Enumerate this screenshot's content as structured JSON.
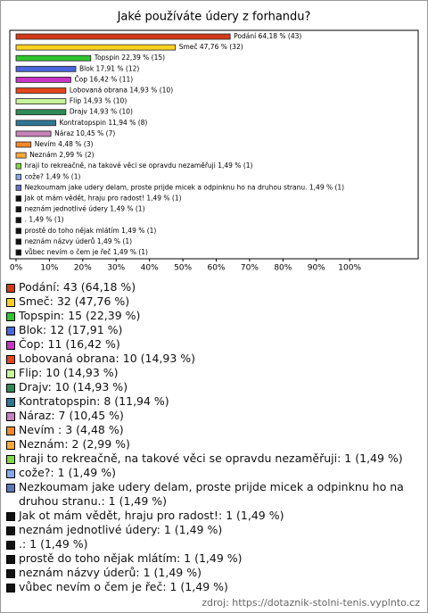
{
  "chart_data": {
    "type": "bar",
    "orientation": "horizontal",
    "title": "Jaké používáte údery z forhandu?",
    "categories": [
      "Podání",
      "Smeč",
      "Topspin",
      "Blok",
      "Čop",
      "Lobovaná obrana",
      "Flip",
      "Drajv",
      "Kontratopspin",
      "Náraz",
      "Nevím",
      "Neznám",
      "hraji to rekreačně, na takové věci se opravdu nezaměřuji",
      "cože?",
      "Nezkoumam jake udery delam, proste prijde micek a odpinknu ho na druhou stranu.",
      "Jak ot mám vědět, hraju pro radost!",
      "neznám jednotlivé údery",
      ".",
      "prostě do toho nějak mlátím",
      "neznám názvy úderů",
      "vůbec nevím o čem je řeč"
    ],
    "values": [
      64.18,
      47.76,
      22.39,
      17.91,
      16.42,
      14.93,
      14.93,
      14.93,
      11.94,
      10.45,
      4.48,
      2.99,
      1.49,
      1.49,
      1.49,
      1.49,
      1.49,
      1.49,
      1.49,
      1.49,
      1.49
    ],
    "value_labels": [
      "Podání 64,18 % (43)",
      "Smeč 47,76 % (32)",
      "Topspin 22,39 % (15)",
      "Blok 17,91 % (12)",
      "Čop 16,42 % (11)",
      "Lobovaná obrana 14,93 % (10)",
      "Flip 14,93 % (10)",
      "Drajv 14,93 % (10)",
      "Kontratopspin 11,94 % (8)",
      "Náraz 10,45 % (7)",
      "Nevím 4,48 % (3)",
      "Neznám 2,99 % (2)",
      "hraji to rekreačně, na takové věci se opravdu nezaměřuji 1,49 % (1)",
      "cože? 1,49 % (1)",
      "Nezkoumam jake udery delam, proste prijde micek a odpinknu ho na druhou stranu. 1,49 % (1)",
      "Jak ot mám vědět, hraju pro radost! 1,49 % (1)",
      "neznám jednotlivé údery 1,49 % (1)",
      ". 1,49 % (1)",
      "prostě do toho nějak mlátím 1,49 % (1)",
      "neznám názvy úderů 1,49 % (1)",
      "vůbec nevím o čem je řeč 1,49 % (1)"
    ],
    "legend_labels": [
      "Podání: 43 (64,18 %)",
      "Smeč: 32 (47,76 %)",
      "Topspin: 15 (22,39 %)",
      "Blok: 12 (17,91 %)",
      "Čop: 11 (16,42 %)",
      "Lobovaná obrana: 10 (14,93 %)",
      "Flip: 10 (14,93 %)",
      "Drajv: 10 (14,93 %)",
      "Kontratopspin: 8 (11,94 %)",
      "Náraz: 7 (10,45 %)",
      "Nevím : 3 (4,48 %)",
      "Neznám: 2 (2,99 %)",
      "hraji to rekreačně, na takové věci se opravdu nezaměřuji: 1 (1,49 %)",
      "cože?: 1 (1,49 %)",
      "Nezkoumam jake udery delam, proste prijde micek a odpinknu ho na druhou stranu.: 1 (1,49 %)",
      "Jak ot mám vědět, hraju pro radost!: 1 (1,49 %)",
      "neznám jednotlivé údery: 1 (1,49 %)",
      ".: 1 (1,49 %)",
      "prostě do toho nějak mlátím: 1 (1,49 %)",
      "neznám názvy úderů: 1 (1,49 %)",
      "vůbec nevím o čem je řeč: 1 (1,49 %)"
    ],
    "colors": [
      "#d43a1a",
      "#ffd21f",
      "#2ec52e",
      "#4a66dd",
      "#c634c6",
      "#e4471b",
      "#c8f59a",
      "#2f8a57",
      "#2f7694",
      "#c684b8",
      "#f5872a",
      "#ffa938",
      "#7fd845",
      "#86a8ec",
      "#6274bb",
      "#111111",
      "#111111",
      "#111111",
      "#111111",
      "#111111",
      "#111111"
    ],
    "xlim": [
      0,
      120
    ],
    "xticks": [
      {
        "value": 0,
        "label": "0%"
      },
      {
        "value": 10,
        "label": "10%"
      },
      {
        "value": 20,
        "label": "20%"
      },
      {
        "value": 30,
        "label": "30%"
      },
      {
        "value": 40,
        "label": "40%"
      },
      {
        "value": 50,
        "label": "50%"
      },
      {
        "value": 60,
        "label": "60%"
      },
      {
        "value": 70,
        "label": "70%"
      },
      {
        "value": 80,
        "label": "80%"
      },
      {
        "value": 90,
        "label": "90%"
      },
      {
        "value": 100,
        "label": "100%"
      }
    ],
    "source": "zdroj: https://dotaznik-stolni-tenis.vyplnto.cz"
  }
}
